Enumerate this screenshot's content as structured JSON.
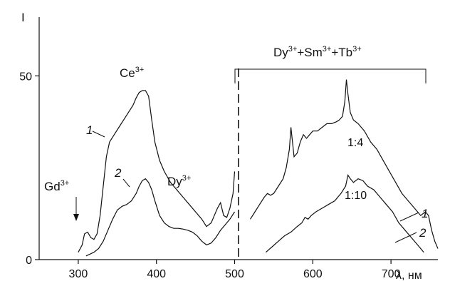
{
  "chart_data": {
    "type": "line",
    "ylabel": "I",
    "xlabel": "λ, нм",
    "xlim": [
      250,
      760
    ],
    "ylim": [
      0,
      66
    ],
    "x_ticks": [
      300,
      400,
      500,
      600,
      700
    ],
    "y_ticks": [
      0,
      50
    ],
    "grid": false,
    "divider_x": 505,
    "series": [
      {
        "name": "1",
        "x": [
          300,
          305,
          308,
          312,
          316,
          320,
          324,
          328,
          332,
          336,
          340,
          346,
          352,
          358,
          364,
          370,
          374,
          378,
          382,
          386,
          390,
          394,
          398,
          404,
          410,
          418,
          426,
          434,
          442,
          450,
          458,
          464,
          470,
          474,
          478,
          482,
          486,
          490,
          494,
          498,
          500
        ],
        "y": [
          2,
          4,
          7,
          7.5,
          6,
          5.5,
          7,
          12,
          20,
          28,
          32,
          34,
          36,
          38,
          40,
          42,
          44,
          45.5,
          46,
          46,
          44.5,
          38,
          32,
          27,
          24,
          21,
          19,
          17,
          15,
          13,
          11,
          9,
          10,
          12,
          14,
          15.5,
          12,
          11.5,
          14,
          18,
          24
        ]
      },
      {
        "name": "2",
        "x": [
          310,
          315,
          320,
          326,
          332,
          338,
          344,
          350,
          356,
          362,
          368,
          374,
          378,
          382,
          386,
          390,
          394,
          398,
          404,
          410,
          416,
          422,
          428,
          434,
          440,
          446,
          452,
          458,
          464,
          470,
          476,
          482,
          488,
          494,
          500
        ],
        "y": [
          1,
          1.5,
          2,
          3,
          5,
          8,
          11,
          13.5,
          14.5,
          15,
          16,
          18,
          20,
          21.5,
          22,
          21,
          19,
          16,
          12,
          10,
          9,
          8.5,
          8.5,
          8.3,
          8,
          7.5,
          6.5,
          5,
          4,
          4.5,
          6,
          8,
          9.5,
          11,
          13
        ]
      },
      {
        "name": "1",
        "x": [
          520,
          526,
          532,
          538,
          542,
          546,
          550,
          556,
          562,
          566,
          570,
          572,
          574,
          576,
          580,
          584,
          588,
          592,
          596,
          600,
          606,
          612,
          618,
          624,
          630,
          634,
          638,
          641,
          643,
          645,
          648,
          652,
          658,
          666,
          674,
          682,
          690,
          698,
          706,
          714,
          722,
          730,
          738,
          744,
          748,
          752,
          756,
          760
        ],
        "y": [
          11,
          13,
          15,
          17,
          18,
          17.5,
          18,
          20,
          22,
          25,
          30,
          36,
          32,
          28,
          29,
          32,
          34,
          33,
          34,
          35,
          35,
          36,
          37,
          37,
          37.5,
          38,
          39,
          43,
          49,
          45,
          40,
          38,
          37,
          35,
          32,
          30,
          27,
          24,
          21,
          18,
          16,
          14,
          12,
          13,
          12,
          8,
          5,
          3
        ]
      },
      {
        "name": "2",
        "x": [
          540,
          548,
          556,
          564,
          572,
          580,
          586,
          590,
          594,
          598,
          604,
          612,
          620,
          628,
          636,
          642,
          645,
          648,
          652,
          658,
          664,
          670,
          678,
          686,
          694,
          702,
          710,
          718,
          726,
          734,
          742
        ],
        "y": [
          2,
          3.5,
          5,
          6.5,
          7.5,
          9,
          10,
          11.5,
          11,
          12,
          13,
          14,
          15,
          16,
          18,
          20,
          23,
          22,
          21,
          22,
          21.5,
          20,
          19,
          17,
          15,
          13,
          10,
          8,
          6,
          4,
          2
        ]
      }
    ],
    "annotations": {
      "gd": "Gd",
      "gd_sup": "3+",
      "ce": "Ce",
      "ce_sup": "3+",
      "dy": "Dy",
      "dy_sup": "3+",
      "group_title": {
        "dy": "Dy",
        "dy_sup": "3+",
        "sep1": "+Sm",
        "sm_sup": "3+",
        "sep2": "+Tb",
        "tb_sup": "3+"
      },
      "curve_label_1": "1",
      "curve_label_2": "2",
      "ratio_1": "1:4",
      "ratio_2": "1:10",
      "curve_label_right_1": "1",
      "curve_label_right_2": "2"
    }
  }
}
